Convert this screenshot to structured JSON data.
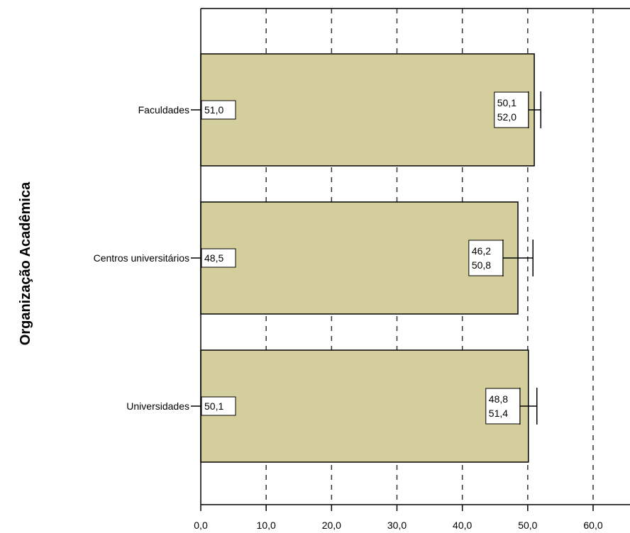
{
  "chart_data": {
    "type": "bar",
    "orientation": "horizontal",
    "title": "",
    "xlabel": "",
    "ylabel": "Organização Acadêmica",
    "categories": [
      "Faculdades",
      "Centros universitários",
      "Universidades"
    ],
    "series": [
      {
        "values": [
          51.0,
          48.5,
          50.1
        ],
        "value_labels": [
          "51,0",
          "48,5",
          "50,1"
        ],
        "ci_low": [
          50.1,
          46.2,
          48.8
        ],
        "ci_high": [
          52.0,
          50.8,
          51.4
        ],
        "ci_low_labels": [
          "50,1",
          "46,2",
          "48,8"
        ],
        "ci_high_labels": [
          "52,0",
          "50,8",
          "51,4"
        ]
      }
    ],
    "xlim": [
      0,
      65
    ],
    "xticks": [
      0,
      10,
      20,
      30,
      40,
      50,
      60
    ],
    "xtick_labels": [
      "0,0",
      "10,0",
      "20,0",
      "30,0",
      "40,0",
      "50,0",
      "60,0"
    ],
    "grid": "vertical dashed",
    "legend": "none",
    "colors": {
      "bar_fill": "#D3CE9B",
      "bar_stroke": "#000000",
      "grid": "#333333",
      "axis": "#000000"
    }
  }
}
